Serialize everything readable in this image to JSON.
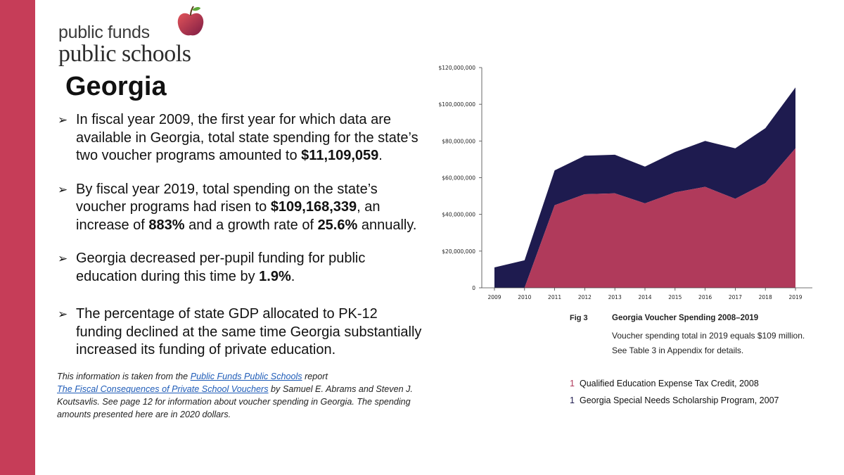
{
  "brand": {
    "line1": "public funds",
    "line2": "public schools"
  },
  "page": {
    "title": "Georgia"
  },
  "bullets": [
    {
      "parts": [
        {
          "text": "In fiscal year 2009, the first year for which data are available in Georgia, total state spending for the state’s two voucher programs amounted to "
        },
        {
          "text": "$11,109,059",
          "bold": true
        },
        {
          "text": "."
        }
      ]
    },
    {
      "parts": [
        {
          "text": "By fiscal year 2019, total spending on the state’s voucher programs had risen to "
        },
        {
          "text": "$109,168,339",
          "bold": true
        },
        {
          "text": ", an increase of "
        },
        {
          "text": "883%",
          "bold": true
        },
        {
          "text": " and a growth rate of "
        },
        {
          "text": "25.6%",
          "bold": true
        },
        {
          "text": " annually."
        }
      ]
    },
    {
      "parts": [
        {
          "text": "Georgia decreased per-pupil funding for public education during this time by "
        },
        {
          "text": "1.9%",
          "bold": true
        },
        {
          "text": "."
        }
      ]
    },
    {
      "parts": [
        {
          "text": "The percentage of state GDP allocated to PK-12 funding declined at the same time Georgia substantially increased its funding of private education."
        }
      ]
    }
  ],
  "source": {
    "t1": "This information is taken from the ",
    "link1": "Public Funds Public Schools",
    "t2": " report ",
    "link2": "The Fiscal Consequences of Private School Vouchers",
    "t3": " by Samuel E. Abrams and Steven J. Koutsavlis. See page 12 for information about voucher spending in Georgia. The spending amounts presented here are in 2020 dollars."
  },
  "figure": {
    "number": "Fig 3",
    "title": "Georgia Voucher Spending 2008–2019",
    "note1": "Voucher spending total in 2019 equals $109 million.",
    "note2": "See Table 3 in Appendix for details."
  },
  "legend": [
    {
      "num": "1",
      "label": "Qualified Education Expense Tax Credit, 2008",
      "color": "#b03a5b"
    },
    {
      "num": "1",
      "label": "Georgia Special Needs Scholarship Program, 2007",
      "color": "#1e1b4f"
    }
  ],
  "colors": {
    "sidebar": "#c63d58",
    "tax_credit": "#b03a5b",
    "special_needs": "#1e1b4f",
    "link": "#1f5cb8"
  },
  "chart_data": {
    "type": "area",
    "stacked": true,
    "title": "Georgia Voucher Spending 2008–2019",
    "xlabel": "",
    "ylabel": "",
    "x": [
      "2009",
      "2010",
      "2011",
      "2012",
      "2013",
      "2014",
      "2015",
      "2016",
      "2017",
      "2018",
      "2019"
    ],
    "series": [
      {
        "name": "Qualified Education Expense Tax Credit, 2008",
        "values": [
          0,
          0,
          45000000,
          51000000,
          51500000,
          46000000,
          52000000,
          55000000,
          48500000,
          57000000,
          76000000
        ]
      },
      {
        "name": "Georgia Special Needs Scholarship Program, 2007",
        "values": [
          11109059,
          15000000,
          19000000,
          21000000,
          21000000,
          20000000,
          22000000,
          25000000,
          27500000,
          30000000,
          33168339
        ]
      }
    ],
    "ylim": [
      0,
      120000000
    ],
    "yticks": [
      0,
      20000000,
      40000000,
      60000000,
      80000000,
      100000000,
      120000000
    ],
    "ytick_labels": [
      "0",
      "$20,000,000",
      "$40,000,000",
      "$60,000,000",
      "$80,000,000",
      "$100,000,000",
      "$120,000,000"
    ],
    "grid": false
  }
}
